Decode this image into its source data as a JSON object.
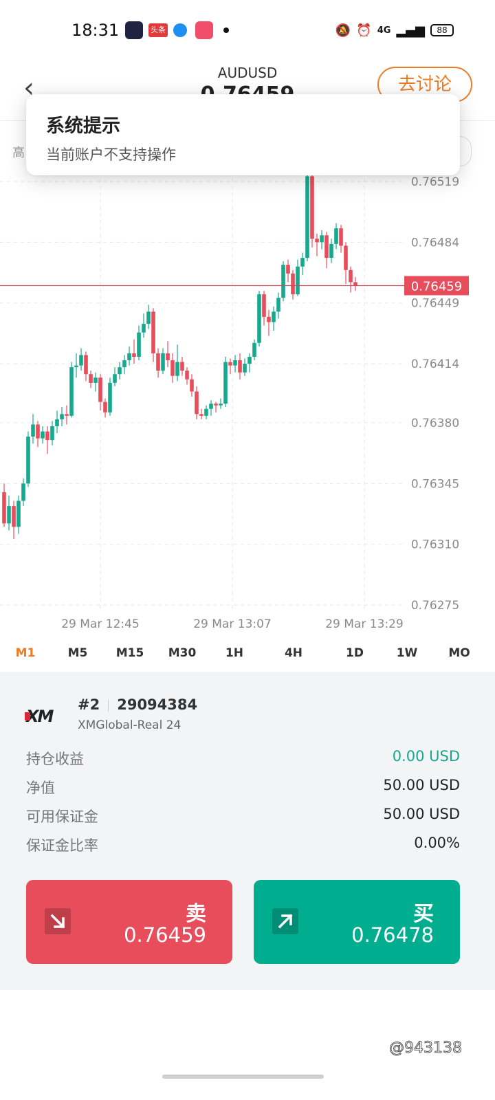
{
  "status_bar": {
    "time": "18:31",
    "app_badge_text": "头条",
    "network": "4G",
    "battery": "88",
    "icons": [
      "mute-icon",
      "alarm-icon",
      "signal-icon",
      "battery-icon"
    ]
  },
  "header": {
    "symbol": "AUDUSD",
    "price": "0.76459",
    "discuss_label": "去讨论"
  },
  "subrow": {
    "label": "高"
  },
  "dialog": {
    "title": "系统提示",
    "message": "当前账户不支持操作"
  },
  "chart_data": {
    "type": "candlestick",
    "y_ticks": [
      "0.76519",
      "0.76484",
      "0.76449",
      "0.76414",
      "0.76380",
      "0.76345",
      "0.76310",
      "0.76275"
    ],
    "x_ticks": [
      "29 Mar  12:45",
      "29 Mar  13:07",
      "29 Mar  13:29"
    ],
    "ylim": [
      0.76275,
      0.76519
    ],
    "current_price": "0.76459",
    "current_price_value": 0.76459,
    "colors": {
      "up": "#16a98e",
      "down": "#e84d5b",
      "price_line": "#c94a55",
      "grid": "#e6e6e6"
    },
    "candles": [
      [
        0.7634,
        0.76322,
        0.76345,
        0.7632
      ],
      [
        0.76322,
        0.76332,
        0.76338,
        0.76318
      ],
      [
        0.76332,
        0.7632,
        0.76335,
        0.76313
      ],
      [
        0.7632,
        0.76335,
        0.76338,
        0.76316
      ],
      [
        0.76335,
        0.76345,
        0.76348,
        0.76332
      ],
      [
        0.76345,
        0.76372,
        0.76375,
        0.76343
      ],
      [
        0.76372,
        0.76379,
        0.76385,
        0.76368
      ],
      [
        0.76379,
        0.76371,
        0.76381,
        0.76366
      ],
      [
        0.76371,
        0.76375,
        0.76378,
        0.76368
      ],
      [
        0.76375,
        0.7637,
        0.76378,
        0.76362
      ],
      [
        0.7637,
        0.76378,
        0.76381,
        0.76367
      ],
      [
        0.76378,
        0.76382,
        0.76387,
        0.76374
      ],
      [
        0.76382,
        0.76385,
        0.76389,
        0.76378
      ],
      [
        0.76385,
        0.76384,
        0.7639,
        0.76379
      ],
      [
        0.76384,
        0.76412,
        0.76415,
        0.76383
      ],
      [
        0.76412,
        0.76413,
        0.7642,
        0.76406
      ],
      [
        0.76413,
        0.76419,
        0.76423,
        0.7641
      ],
      [
        0.76419,
        0.76408,
        0.76421,
        0.76404
      ],
      [
        0.76408,
        0.76403,
        0.7641,
        0.764
      ],
      [
        0.76403,
        0.76406,
        0.76409,
        0.76398
      ],
      [
        0.76406,
        0.76392,
        0.76408,
        0.76387
      ],
      [
        0.76392,
        0.76386,
        0.76394,
        0.76383
      ],
      [
        0.76386,
        0.76403,
        0.76406,
        0.76384
      ],
      [
        0.76403,
        0.76408,
        0.76412,
        0.76401
      ],
      [
        0.76408,
        0.76412,
        0.76415,
        0.76405
      ],
      [
        0.76412,
        0.76416,
        0.76419,
        0.76408
      ],
      [
        0.76416,
        0.7642,
        0.76424,
        0.76413
      ],
      [
        0.7642,
        0.76418,
        0.76428,
        0.76414
      ],
      [
        0.76418,
        0.76432,
        0.76436,
        0.76416
      ],
      [
        0.76432,
        0.76437,
        0.76443,
        0.76429
      ],
      [
        0.76437,
        0.76444,
        0.76448,
        0.76434
      ],
      [
        0.76444,
        0.7642,
        0.76446,
        0.76415
      ],
      [
        0.7642,
        0.7641,
        0.76423,
        0.76406
      ],
      [
        0.7641,
        0.7642,
        0.76423,
        0.76408
      ],
      [
        0.7642,
        0.76416,
        0.76427,
        0.76412
      ],
      [
        0.76416,
        0.76407,
        0.7642,
        0.76403
      ],
      [
        0.76407,
        0.76415,
        0.76425,
        0.76404
      ],
      [
        0.76415,
        0.7641,
        0.76418,
        0.76407
      ],
      [
        0.7641,
        0.76405,
        0.76412,
        0.76402
      ],
      [
        0.76405,
        0.76398,
        0.76408,
        0.76395
      ],
      [
        0.76398,
        0.76385,
        0.76401,
        0.76382
      ],
      [
        0.76385,
        0.76384,
        0.76388,
        0.76382
      ],
      [
        0.76384,
        0.76388,
        0.7639,
        0.76382
      ],
      [
        0.76388,
        0.76391,
        0.76393,
        0.76384
      ],
      [
        0.76391,
        0.7639,
        0.76392,
        0.76386
      ],
      [
        0.7639,
        0.76391,
        0.76394,
        0.76388
      ],
      [
        0.76391,
        0.76415,
        0.76418,
        0.76389
      ],
      [
        0.76415,
        0.76413,
        0.76417,
        0.76408
      ],
      [
        0.76413,
        0.76416,
        0.76419,
        0.76409
      ],
      [
        0.76416,
        0.76409,
        0.7642,
        0.76405
      ],
      [
        0.76409,
        0.76414,
        0.76417,
        0.76407
      ],
      [
        0.76414,
        0.76418,
        0.7642,
        0.76409
      ],
      [
        0.76418,
        0.76426,
        0.76428,
        0.76416
      ],
      [
        0.76426,
        0.76454,
        0.76456,
        0.76424
      ],
      [
        0.76454,
        0.76441,
        0.76456,
        0.76436
      ],
      [
        0.76441,
        0.76438,
        0.76445,
        0.7643
      ],
      [
        0.76438,
        0.76444,
        0.76447,
        0.76433
      ],
      [
        0.76444,
        0.76452,
        0.76455,
        0.7644
      ],
      [
        0.76452,
        0.76471,
        0.76473,
        0.7645
      ],
      [
        0.76471,
        0.76466,
        0.76474,
        0.76461
      ],
      [
        0.76466,
        0.76454,
        0.76468,
        0.76451
      ],
      [
        0.76454,
        0.7647,
        0.76474,
        0.76453
      ],
      [
        0.7647,
        0.76475,
        0.76478,
        0.76465
      ],
      [
        0.76475,
        0.76522,
        0.76526,
        0.76473
      ],
      [
        0.76522,
        0.76486,
        0.76524,
        0.76481
      ],
      [
        0.76486,
        0.76484,
        0.76489,
        0.76476
      ],
      [
        0.76484,
        0.76488,
        0.76491,
        0.7648
      ],
      [
        0.76488,
        0.76475,
        0.7649,
        0.76469
      ],
      [
        0.76475,
        0.76483,
        0.76486,
        0.76472
      ],
      [
        0.76483,
        0.76492,
        0.76495,
        0.7648
      ],
      [
        0.76492,
        0.76482,
        0.76494,
        0.76478
      ],
      [
        0.76482,
        0.76468,
        0.76484,
        0.7646
      ],
      [
        0.76468,
        0.76461,
        0.7647,
        0.76455
      ],
      [
        0.76461,
        0.76459,
        0.76464,
        0.76456
      ]
    ]
  },
  "timeframes": [
    {
      "label": "M1",
      "active": true
    },
    {
      "label": "M5",
      "active": false
    },
    {
      "label": "M15",
      "active": false
    },
    {
      "label": "M30",
      "active": false
    },
    {
      "label": "1H",
      "active": false
    },
    {
      "label": "4H",
      "active": false
    },
    {
      "label": "1D",
      "active": false
    },
    {
      "label": "1W",
      "active": false
    },
    {
      "label": "MO",
      "active": false
    }
  ],
  "account": {
    "logo_text": "XM",
    "index": "#2",
    "number": "29094384",
    "server": "XMGlobal-Real 24",
    "stats": [
      {
        "label": "持仓收益",
        "value": "0.00 USD",
        "positive": true
      },
      {
        "label": "净值",
        "value": "50.00 USD",
        "positive": false
      },
      {
        "label": "可用保证金",
        "value": "50.00 USD",
        "positive": false
      },
      {
        "label": "保证金比率",
        "value": "0.00%",
        "positive": false
      }
    ]
  },
  "trade": {
    "sell_label": "卖",
    "sell_price": "0.76459",
    "buy_label": "买",
    "buy_price": "0.76478"
  },
  "watermark": "@943138"
}
